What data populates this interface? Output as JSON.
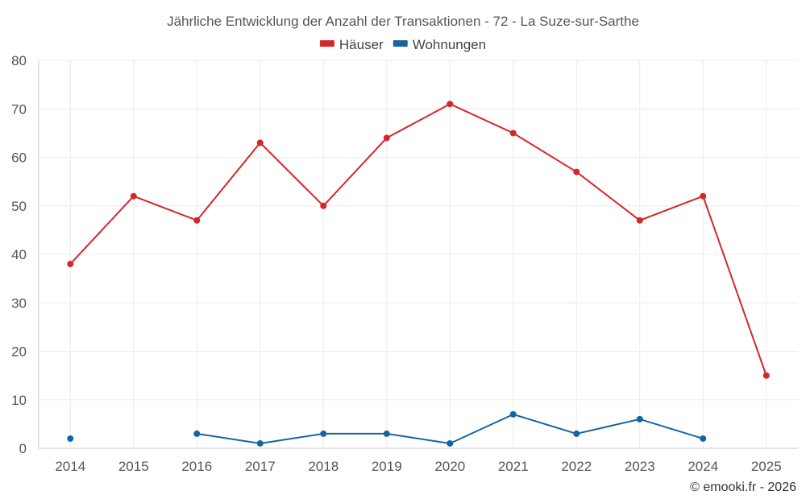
{
  "chart_data": {
    "type": "line",
    "title": "Jährliche Entwicklung der Anzahl der Transaktionen - 72 - La Suze-sur-Sarthe",
    "xlabel": "",
    "ylabel": "",
    "categories": [
      "2014",
      "2015",
      "2016",
      "2017",
      "2018",
      "2019",
      "2020",
      "2021",
      "2022",
      "2023",
      "2024",
      "2025"
    ],
    "ylim": [
      0,
      80
    ],
    "yticks": [
      0,
      10,
      20,
      30,
      40,
      50,
      60,
      70,
      80
    ],
    "grid": true,
    "legend_position": "top-center",
    "series": [
      {
        "name": "Häuser",
        "color": "#d62728",
        "values": [
          38,
          52,
          47,
          63,
          50,
          64,
          71,
          65,
          57,
          47,
          52,
          15
        ]
      },
      {
        "name": "Wohnungen",
        "color": "#1565a0",
        "values": [
          2,
          null,
          3,
          1,
          3,
          3,
          1,
          7,
          3,
          6,
          2,
          null
        ]
      }
    ]
  },
  "credit": "© emooki.fr - 2026"
}
